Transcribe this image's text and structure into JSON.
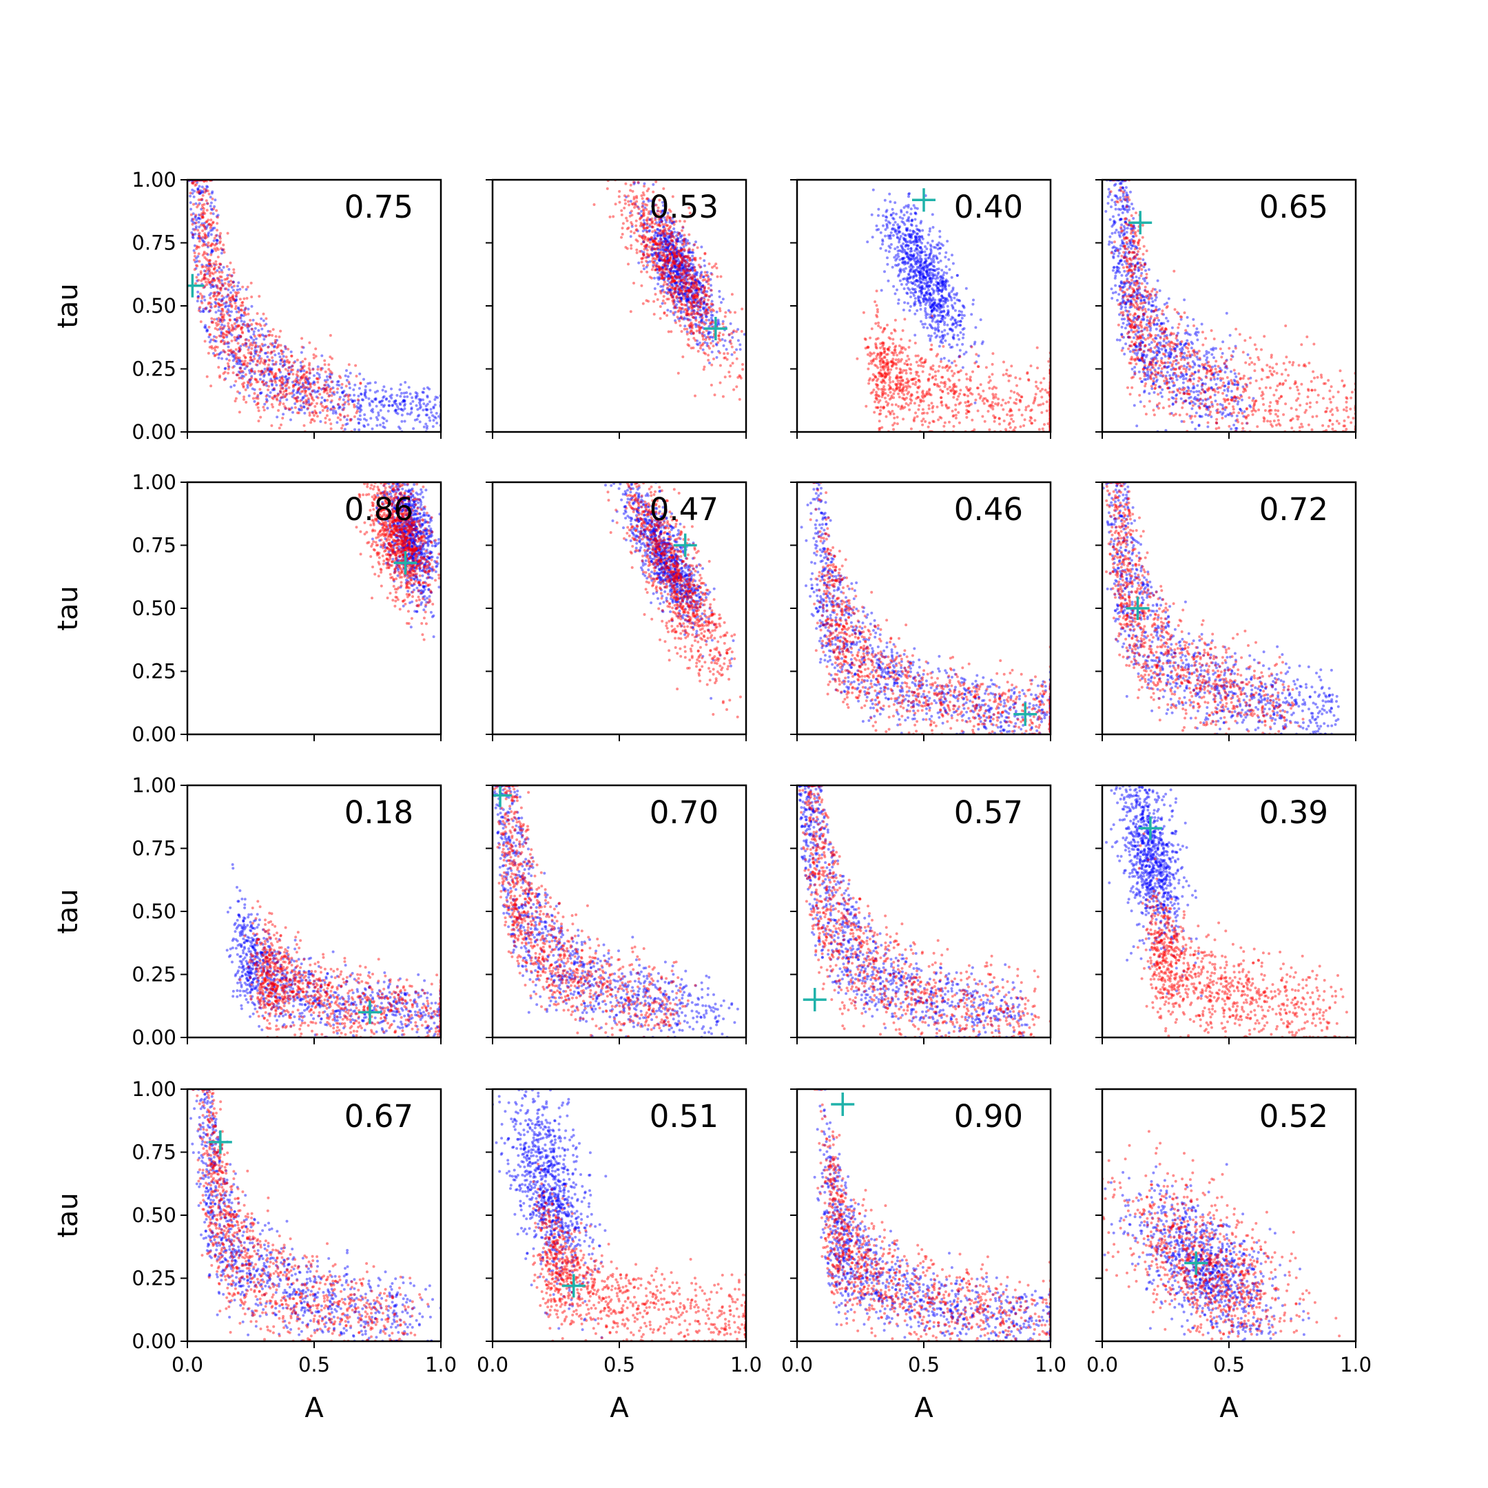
{
  "chart_data": {
    "type": "scatter",
    "layout": "4x4 grid of subplots",
    "xlabel": "A",
    "ylabel": "tau",
    "xlim": [
      0.0,
      1.0
    ],
    "ylim": [
      0.0,
      1.0
    ],
    "x_ticks": [
      "0.0",
      "0.5",
      "1.0"
    ],
    "y_ticks": [
      "0.00",
      "0.25",
      "0.50",
      "0.75",
      "1.00"
    ],
    "series_colors": {
      "sample_a": "#0000ff",
      "sample_b": "#ff0000",
      "marker": "#20b2aa"
    },
    "panels": [
      {
        "label": "0.75",
        "marker": {
          "A": 0.02,
          "tau": 0.58
        }
      },
      {
        "label": "0.53",
        "marker": {
          "A": 0.88,
          "tau": 0.41
        }
      },
      {
        "label": "0.40",
        "marker": {
          "A": 0.5,
          "tau": 0.92
        }
      },
      {
        "label": "0.65",
        "marker": {
          "A": 0.15,
          "tau": 0.83
        }
      },
      {
        "label": "0.86",
        "marker": {
          "A": 0.86,
          "tau": 0.68
        }
      },
      {
        "label": "0.47",
        "marker": {
          "A": 0.76,
          "tau": 0.75
        }
      },
      {
        "label": "0.46",
        "marker": {
          "A": 0.9,
          "tau": 0.08
        }
      },
      {
        "label": "0.72",
        "marker": {
          "A": 0.14,
          "tau": 0.5
        }
      },
      {
        "label": "0.18",
        "marker": {
          "A": 0.72,
          "tau": 0.1
        }
      },
      {
        "label": "0.70",
        "marker": {
          "A": 0.03,
          "tau": 0.96
        }
      },
      {
        "label": "0.57",
        "marker": {
          "A": 0.07,
          "tau": 0.15
        }
      },
      {
        "label": "0.39",
        "marker": {
          "A": 0.19,
          "tau": 0.83
        }
      },
      {
        "label": "0.67",
        "marker": {
          "A": 0.13,
          "tau": 0.79
        }
      },
      {
        "label": "0.51",
        "marker": {
          "A": 0.32,
          "tau": 0.22
        }
      },
      {
        "label": "0.90",
        "marker": {
          "A": 0.18,
          "tau": 0.94
        }
      },
      {
        "label": "0.52",
        "marker": {
          "A": 0.37,
          "tau": 0.31
        }
      }
    ]
  }
}
